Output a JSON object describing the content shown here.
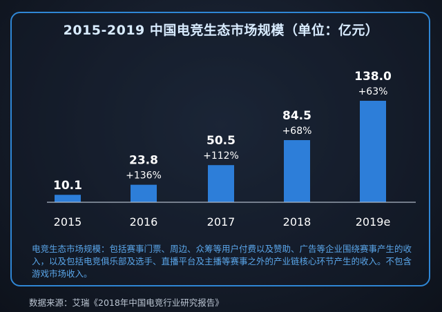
{
  "colors": {
    "bar": "#2d7ed9",
    "accent_border": "#2f87d6",
    "value_text": "#ffffff",
    "note_text": "#5aa6ea"
  },
  "chart_data": {
    "type": "bar",
    "title": "2015-2019 中国电竞生态市场规模（单位：亿元）",
    "xlabel": "",
    "ylabel": "",
    "categories": [
      "2015",
      "2016",
      "2017",
      "2018",
      "2019e"
    ],
    "values": [
      10.1,
      23.8,
      50.5,
      84.5,
      138.0
    ],
    "value_labels": [
      "10.1",
      "23.8",
      "50.5",
      "84.5",
      "138.0"
    ],
    "growth_labels": [
      "",
      "+136%",
      "+112%",
      "+68%",
      "+63%"
    ],
    "ylim": [
      0,
      138.0
    ],
    "grid": false,
    "legend": "none"
  },
  "note": "电竞生态市场规模：包括赛事门票、周边、众筹等用户付费以及赞助、广告等企业围绕赛事产生的收入，以及包括电竞俱乐部及选手、直播平台及主播等赛事之外的产业链核心环节产生的收入。不包含游戏市场收入。",
  "source": "数据来源：艾瑞《2018年中国电竞行业研究报告》"
}
